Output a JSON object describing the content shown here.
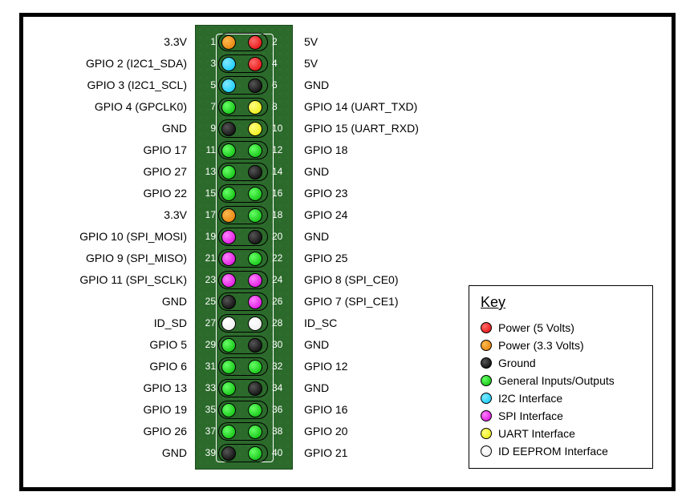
{
  "diagram": {
    "pcb_color": "#2b6a2b",
    "rows": [
      {
        "left_label": "3.3V",
        "left_num": 1,
        "left_type": "power3v3",
        "right_num": 2,
        "right_type": "power5v",
        "right_label": "5V"
      },
      {
        "left_label": "GPIO 2 (I2C1_SDA)",
        "left_num": 3,
        "left_type": "i2c",
        "right_num": 4,
        "right_type": "power5v",
        "right_label": "5V"
      },
      {
        "left_label": "GPIO 3 (I2C1_SCL)",
        "left_num": 5,
        "left_type": "i2c",
        "right_num": 6,
        "right_type": "ground",
        "right_label": "GND"
      },
      {
        "left_label": "GPIO 4 (GPCLK0)",
        "left_num": 7,
        "left_type": "gpio",
        "right_num": 8,
        "right_type": "uart",
        "right_label": "GPIO 14 (UART_TXD)"
      },
      {
        "left_label": "GND",
        "left_num": 9,
        "left_type": "ground",
        "right_num": 10,
        "right_type": "uart",
        "right_label": "GPIO 15 (UART_RXD)"
      },
      {
        "left_label": "GPIO 17",
        "left_num": 11,
        "left_type": "gpio",
        "right_num": 12,
        "right_type": "gpio",
        "right_label": "GPIO 18"
      },
      {
        "left_label": "GPIO 27",
        "left_num": 13,
        "left_type": "gpio",
        "right_num": 14,
        "right_type": "ground",
        "right_label": "GND"
      },
      {
        "left_label": "GPIO 22",
        "left_num": 15,
        "left_type": "gpio",
        "right_num": 16,
        "right_type": "gpio",
        "right_label": "GPIO 23"
      },
      {
        "left_label": "3.3V",
        "left_num": 17,
        "left_type": "power3v3",
        "right_num": 18,
        "right_type": "gpio",
        "right_label": "GPIO 24"
      },
      {
        "left_label": "GPIO 10 (SPI_MOSI)",
        "left_num": 19,
        "left_type": "spi",
        "right_num": 20,
        "right_type": "ground",
        "right_label": "GND"
      },
      {
        "left_label": "GPIO 9 (SPI_MISO)",
        "left_num": 21,
        "left_type": "spi",
        "right_num": 22,
        "right_type": "gpio",
        "right_label": "GPIO 25"
      },
      {
        "left_label": "GPIO 11 (SPI_SCLK)",
        "left_num": 23,
        "left_type": "spi",
        "right_num": 24,
        "right_type": "spi",
        "right_label": "GPIO 8 (SPI_CE0)"
      },
      {
        "left_label": "GND",
        "left_num": 25,
        "left_type": "ground",
        "right_num": 26,
        "right_type": "spi",
        "right_label": "GPIO 7 (SPI_CE1)"
      },
      {
        "left_label": "ID_SD",
        "left_num": 27,
        "left_type": "ideeprom",
        "right_num": 28,
        "right_type": "ideeprom",
        "right_label": "ID_SC"
      },
      {
        "left_label": "GPIO 5",
        "left_num": 29,
        "left_type": "gpio",
        "right_num": 30,
        "right_type": "ground",
        "right_label": "GND"
      },
      {
        "left_label": "GPIO 6",
        "left_num": 31,
        "left_type": "gpio",
        "right_num": 32,
        "right_type": "gpio",
        "right_label": "GPIO 12"
      },
      {
        "left_label": "GPIO 13",
        "left_num": 33,
        "left_type": "gpio",
        "right_num": 34,
        "right_type": "ground",
        "right_label": "GND"
      },
      {
        "left_label": "GPIO 19",
        "left_num": 35,
        "left_type": "gpio",
        "right_num": 36,
        "right_type": "gpio",
        "right_label": "GPIO 16"
      },
      {
        "left_label": "GPIO 26",
        "left_num": 37,
        "left_type": "gpio",
        "right_num": 38,
        "right_type": "gpio",
        "right_label": "GPIO 20"
      },
      {
        "left_label": "GND",
        "left_num": 39,
        "left_type": "ground",
        "right_num": 40,
        "right_type": "gpio",
        "right_label": "GPIO 21"
      }
    ]
  },
  "key": {
    "title": "Key",
    "items": [
      {
        "type": "power5v",
        "label": "Power (5 Volts)"
      },
      {
        "type": "power3v3",
        "label": "Power (3.3 Volts)"
      },
      {
        "type": "ground",
        "label": "Ground"
      },
      {
        "type": "gpio",
        "label": "General Inputs/Outputs"
      },
      {
        "type": "i2c",
        "label": "I2C Interface"
      },
      {
        "type": "spi",
        "label": "SPI Interface"
      },
      {
        "type": "uart",
        "label": "UART Interface"
      },
      {
        "type": "ideeprom",
        "label": "ID EEPROM Interface"
      }
    ]
  },
  "colors": {
    "power5v": "#e00000",
    "power3v3": "#e07a00",
    "ground": "#000000",
    "gpio": "#00b400",
    "i2c": "#00c8ff",
    "spi": "#d400d4",
    "uart": "#e8e800",
    "ideeprom": "#ffffff"
  }
}
